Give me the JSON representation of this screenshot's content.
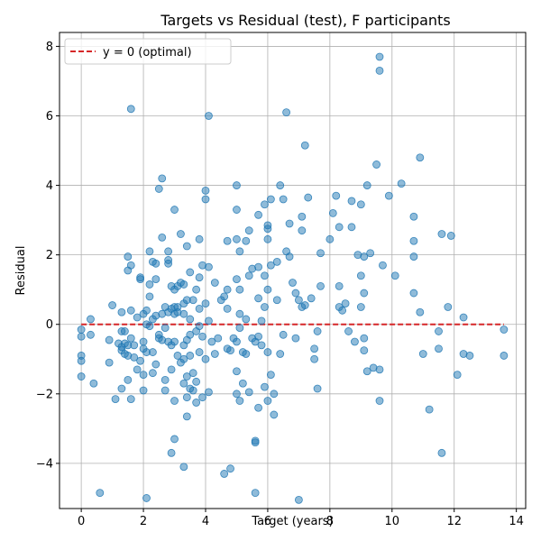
{
  "chart_data": {
    "type": "scatter",
    "title": "Targets vs Residual (test), F participants",
    "xlabel": "Target (years)",
    "ylabel": "Residual",
    "xlim": [
      -0.7,
      14.3
    ],
    "ylim": [
      -5.3,
      8.4
    ],
    "xticks": [
      0,
      2,
      4,
      6,
      8,
      10,
      12,
      14
    ],
    "yticks": [
      -4,
      -2,
      0,
      2,
      4,
      6,
      8
    ],
    "grid": true,
    "legend": {
      "placement": "top-left",
      "entries": [
        {
          "label": "y = 0 (optimal)",
          "style": "dashed-red-line"
        }
      ]
    },
    "reference_line": {
      "y": 0,
      "color": "#d62728",
      "style": "dashed"
    },
    "point_color": "#1f77b4",
    "points": [
      [
        0.0,
        -0.15
      ],
      [
        0.0,
        -0.35
      ],
      [
        0.0,
        -0.9
      ],
      [
        0.0,
        -1.05
      ],
      [
        0.0,
        -1.5
      ],
      [
        0.3,
        0.15
      ],
      [
        0.3,
        -0.3
      ],
      [
        0.4,
        -1.7
      ],
      [
        0.6,
        -4.85
      ],
      [
        0.9,
        -0.45
      ],
      [
        0.9,
        -1.1
      ],
      [
        1.0,
        0.55
      ],
      [
        1.1,
        -2.15
      ],
      [
        1.2,
        -0.55
      ],
      [
        1.3,
        0.35
      ],
      [
        1.3,
        -0.65
      ],
      [
        1.3,
        -0.75
      ],
      [
        1.3,
        -0.2
      ],
      [
        1.3,
        -1.85
      ],
      [
        1.4,
        -0.85
      ],
      [
        1.4,
        -0.55
      ],
      [
        1.4,
        -0.2
      ],
      [
        1.5,
        1.55
      ],
      [
        1.5,
        1.95
      ],
      [
        1.5,
        -1.6
      ],
      [
        1.5,
        -0.9
      ],
      [
        1.5,
        -0.6
      ],
      [
        1.6,
        6.2
      ],
      [
        1.6,
        1.7
      ],
      [
        1.6,
        0.4
      ],
      [
        1.6,
        -0.4
      ],
      [
        1.6,
        -2.15
      ],
      [
        1.7,
        -0.6
      ],
      [
        1.7,
        -0.95
      ],
      [
        1.8,
        -1.3
      ],
      [
        1.8,
        0.2
      ],
      [
        1.9,
        1.35
      ],
      [
        1.9,
        1.3
      ],
      [
        1.9,
        -1.05
      ],
      [
        2.0,
        -0.5
      ],
      [
        2.0,
        -0.7
      ],
      [
        2.0,
        -1.45
      ],
      [
        2.0,
        0.3
      ],
      [
        2.0,
        -1.9
      ],
      [
        2.1,
        0.0
      ],
      [
        2.1,
        -0.8
      ],
      [
        2.1,
        -5.0
      ],
      [
        2.1,
        0.4
      ],
      [
        2.2,
        2.1
      ],
      [
        2.2,
        1.15
      ],
      [
        2.2,
        0.8
      ],
      [
        2.2,
        -0.05
      ],
      [
        2.3,
        1.8
      ],
      [
        2.3,
        0.15
      ],
      [
        2.3,
        -0.8
      ],
      [
        2.3,
        -1.4
      ],
      [
        2.4,
        1.75
      ],
      [
        2.4,
        1.3
      ],
      [
        2.4,
        0.25
      ],
      [
        2.4,
        -1.15
      ],
      [
        2.5,
        3.9
      ],
      [
        2.5,
        -0.3
      ],
      [
        2.5,
        -0.4
      ],
      [
        2.6,
        4.2
      ],
      [
        2.6,
        2.5
      ],
      [
        2.6,
        0.3
      ],
      [
        2.6,
        -0.45
      ],
      [
        2.7,
        -1.6
      ],
      [
        2.7,
        -1.9
      ],
      [
        2.7,
        0.5
      ],
      [
        2.7,
        -0.1
      ],
      [
        2.8,
        2.1
      ],
      [
        2.8,
        1.75
      ],
      [
        2.8,
        1.85
      ],
      [
        2.8,
        0.35
      ],
      [
        2.8,
        -0.5
      ],
      [
        2.9,
        -3.7
      ],
      [
        2.9,
        -1.3
      ],
      [
        2.9,
        -0.6
      ],
      [
        2.9,
        1.1
      ],
      [
        2.9,
        0.45
      ],
      [
        3.0,
        3.3
      ],
      [
        3.0,
        1.0
      ],
      [
        3.0,
        0.5
      ],
      [
        3.0,
        0.3
      ],
      [
        3.0,
        -0.5
      ],
      [
        3.0,
        -2.2
      ],
      [
        3.0,
        -3.3
      ],
      [
        3.1,
        1.1
      ],
      [
        3.1,
        0.5
      ],
      [
        3.1,
        0.35
      ],
      [
        3.1,
        -0.9
      ],
      [
        3.2,
        2.6
      ],
      [
        3.2,
        1.2
      ],
      [
        3.2,
        -1.1
      ],
      [
        3.3,
        -4.1
      ],
      [
        3.3,
        1.15
      ],
      [
        3.3,
        0.6
      ],
      [
        3.3,
        0.3
      ],
      [
        3.3,
        -0.6
      ],
      [
        3.3,
        -1.0
      ],
      [
        3.3,
        -1.7
      ],
      [
        3.4,
        2.25
      ],
      [
        3.4,
        0.7
      ],
      [
        3.4,
        -0.45
      ],
      [
        3.4,
        -1.5
      ],
      [
        3.4,
        -2.1
      ],
      [
        3.4,
        -2.65
      ],
      [
        3.5,
        1.5
      ],
      [
        3.5,
        0.15
      ],
      [
        3.5,
        -0.3
      ],
      [
        3.5,
        -0.9
      ],
      [
        3.5,
        -1.85
      ],
      [
        3.6,
        0.7
      ],
      [
        3.6,
        -1.4
      ],
      [
        3.6,
        -1.9
      ],
      [
        3.7,
        1.0
      ],
      [
        3.7,
        -0.2
      ],
      [
        3.7,
        -1.65
      ],
      [
        3.7,
        -2.25
      ],
      [
        3.8,
        2.45
      ],
      [
        3.8,
        1.35
      ],
      [
        3.8,
        0.45
      ],
      [
        3.8,
        -0.05
      ],
      [
        3.8,
        -0.8
      ],
      [
        3.9,
        1.7
      ],
      [
        3.9,
        -0.35
      ],
      [
        3.9,
        -2.1
      ],
      [
        4.0,
        3.6
      ],
      [
        4.0,
        3.85
      ],
      [
        4.0,
        0.6
      ],
      [
        4.0,
        -1.0
      ],
      [
        4.1,
        6.0
      ],
      [
        4.1,
        1.65
      ],
      [
        4.1,
        0.1
      ],
      [
        4.1,
        -1.95
      ],
      [
        4.2,
        -0.5
      ],
      [
        4.3,
        1.2
      ],
      [
        4.3,
        -0.85
      ],
      [
        4.4,
        -0.4
      ],
      [
        4.5,
        0.7
      ],
      [
        4.6,
        -4.3
      ],
      [
        4.6,
        0.8
      ],
      [
        4.7,
        2.4
      ],
      [
        4.7,
        1.0
      ],
      [
        4.7,
        0.45
      ],
      [
        4.7,
        -0.7
      ],
      [
        4.8,
        -4.15
      ],
      [
        4.8,
        -0.75
      ],
      [
        4.9,
        -0.4
      ],
      [
        5.0,
        4.0
      ],
      [
        5.0,
        3.3
      ],
      [
        5.0,
        2.45
      ],
      [
        5.0,
        1.3
      ],
      [
        5.0,
        -0.5
      ],
      [
        5.0,
        -1.35
      ],
      [
        5.0,
        -2.0
      ],
      [
        5.1,
        2.1
      ],
      [
        5.1,
        1.0
      ],
      [
        5.1,
        0.3
      ],
      [
        5.1,
        -0.1
      ],
      [
        5.1,
        -2.2
      ],
      [
        5.2,
        -1.7
      ],
      [
        5.2,
        -0.8
      ],
      [
        5.3,
        2.4
      ],
      [
        5.3,
        0.15
      ],
      [
        5.3,
        -0.85
      ],
      [
        5.4,
        2.7
      ],
      [
        5.4,
        1.4
      ],
      [
        5.4,
        -1.95
      ],
      [
        5.5,
        1.6
      ],
      [
        5.5,
        -0.4
      ],
      [
        5.6,
        -3.35
      ],
      [
        5.6,
        -3.4
      ],
      [
        5.6,
        -4.85
      ],
      [
        5.6,
        -0.5
      ],
      [
        5.7,
        3.15
      ],
      [
        5.7,
        1.65
      ],
      [
        5.7,
        0.75
      ],
      [
        5.7,
        -0.35
      ],
      [
        5.7,
        -2.4
      ],
      [
        5.8,
        0.1
      ],
      [
        5.8,
        -0.6
      ],
      [
        5.9,
        3.45
      ],
      [
        5.9,
        1.4
      ],
      [
        5.9,
        0.5
      ],
      [
        5.9,
        -1.8
      ],
      [
        6.0,
        2.85
      ],
      [
        6.0,
        2.75
      ],
      [
        6.0,
        2.45
      ],
      [
        6.0,
        1.0
      ],
      [
        6.0,
        -0.8
      ],
      [
        6.0,
        -2.2
      ],
      [
        6.1,
        3.6
      ],
      [
        6.1,
        1.7
      ],
      [
        6.1,
        -1.45
      ],
      [
        6.2,
        -2.6
      ],
      [
        6.2,
        -2.0
      ],
      [
        6.3,
        1.8
      ],
      [
        6.3,
        0.7
      ],
      [
        6.4,
        4.0
      ],
      [
        6.4,
        -0.85
      ],
      [
        6.5,
        3.6
      ],
      [
        6.5,
        -0.3
      ],
      [
        6.6,
        6.1
      ],
      [
        6.6,
        2.1
      ],
      [
        6.7,
        2.9
      ],
      [
        6.7,
        1.95
      ],
      [
        6.8,
        1.2
      ],
      [
        6.9,
        0.9
      ],
      [
        6.9,
        -0.4
      ],
      [
        7.0,
        -5.05
      ],
      [
        7.0,
        0.7
      ],
      [
        7.1,
        3.1
      ],
      [
        7.1,
        2.7
      ],
      [
        7.1,
        0.5
      ],
      [
        7.2,
        5.15
      ],
      [
        7.2,
        0.55
      ],
      [
        7.3,
        3.65
      ],
      [
        7.4,
        0.75
      ],
      [
        7.5,
        -0.7
      ],
      [
        7.5,
        -1.0
      ],
      [
        7.6,
        -1.85
      ],
      [
        7.6,
        -0.2
      ],
      [
        7.7,
        2.05
      ],
      [
        7.7,
        1.1
      ],
      [
        8.0,
        2.45
      ],
      [
        8.1,
        3.2
      ],
      [
        8.2,
        3.7
      ],
      [
        8.3,
        2.8
      ],
      [
        8.3,
        1.1
      ],
      [
        8.3,
        0.5
      ],
      [
        8.4,
        0.4
      ],
      [
        8.5,
        0.6
      ],
      [
        8.6,
        -0.2
      ],
      [
        8.7,
        3.55
      ],
      [
        8.7,
        2.8
      ],
      [
        8.8,
        -0.5
      ],
      [
        8.9,
        2.0
      ],
      [
        9.0,
        1.4
      ],
      [
        9.0,
        0.5
      ],
      [
        9.0,
        3.45
      ],
      [
        9.1,
        -0.4
      ],
      [
        9.1,
        -0.75
      ],
      [
        9.1,
        1.95
      ],
      [
        9.1,
        0.9
      ],
      [
        9.2,
        4.0
      ],
      [
        9.2,
        -1.35
      ],
      [
        9.3,
        2.05
      ],
      [
        9.4,
        -1.25
      ],
      [
        9.5,
        4.6
      ],
      [
        9.6,
        7.7
      ],
      [
        9.6,
        7.3
      ],
      [
        9.6,
        -1.3
      ],
      [
        9.6,
        -2.2
      ],
      [
        9.7,
        1.7
      ],
      [
        9.9,
        3.7
      ],
      [
        10.1,
        1.4
      ],
      [
        10.3,
        4.05
      ],
      [
        10.7,
        1.95
      ],
      [
        10.7,
        3.1
      ],
      [
        10.7,
        2.4
      ],
      [
        10.7,
        0.9
      ],
      [
        10.9,
        4.8
      ],
      [
        10.9,
        0.35
      ],
      [
        11.0,
        -0.85
      ],
      [
        11.2,
        -2.45
      ],
      [
        11.5,
        -0.2
      ],
      [
        11.5,
        -0.7
      ],
      [
        11.6,
        -3.7
      ],
      [
        11.6,
        2.6
      ],
      [
        11.8,
        0.5
      ],
      [
        11.9,
        2.55
      ],
      [
        12.1,
        -1.45
      ],
      [
        12.3,
        0.2
      ],
      [
        12.3,
        -0.85
      ],
      [
        12.5,
        -0.9
      ],
      [
        13.6,
        -0.15
      ],
      [
        13.6,
        -0.9
      ]
    ]
  }
}
